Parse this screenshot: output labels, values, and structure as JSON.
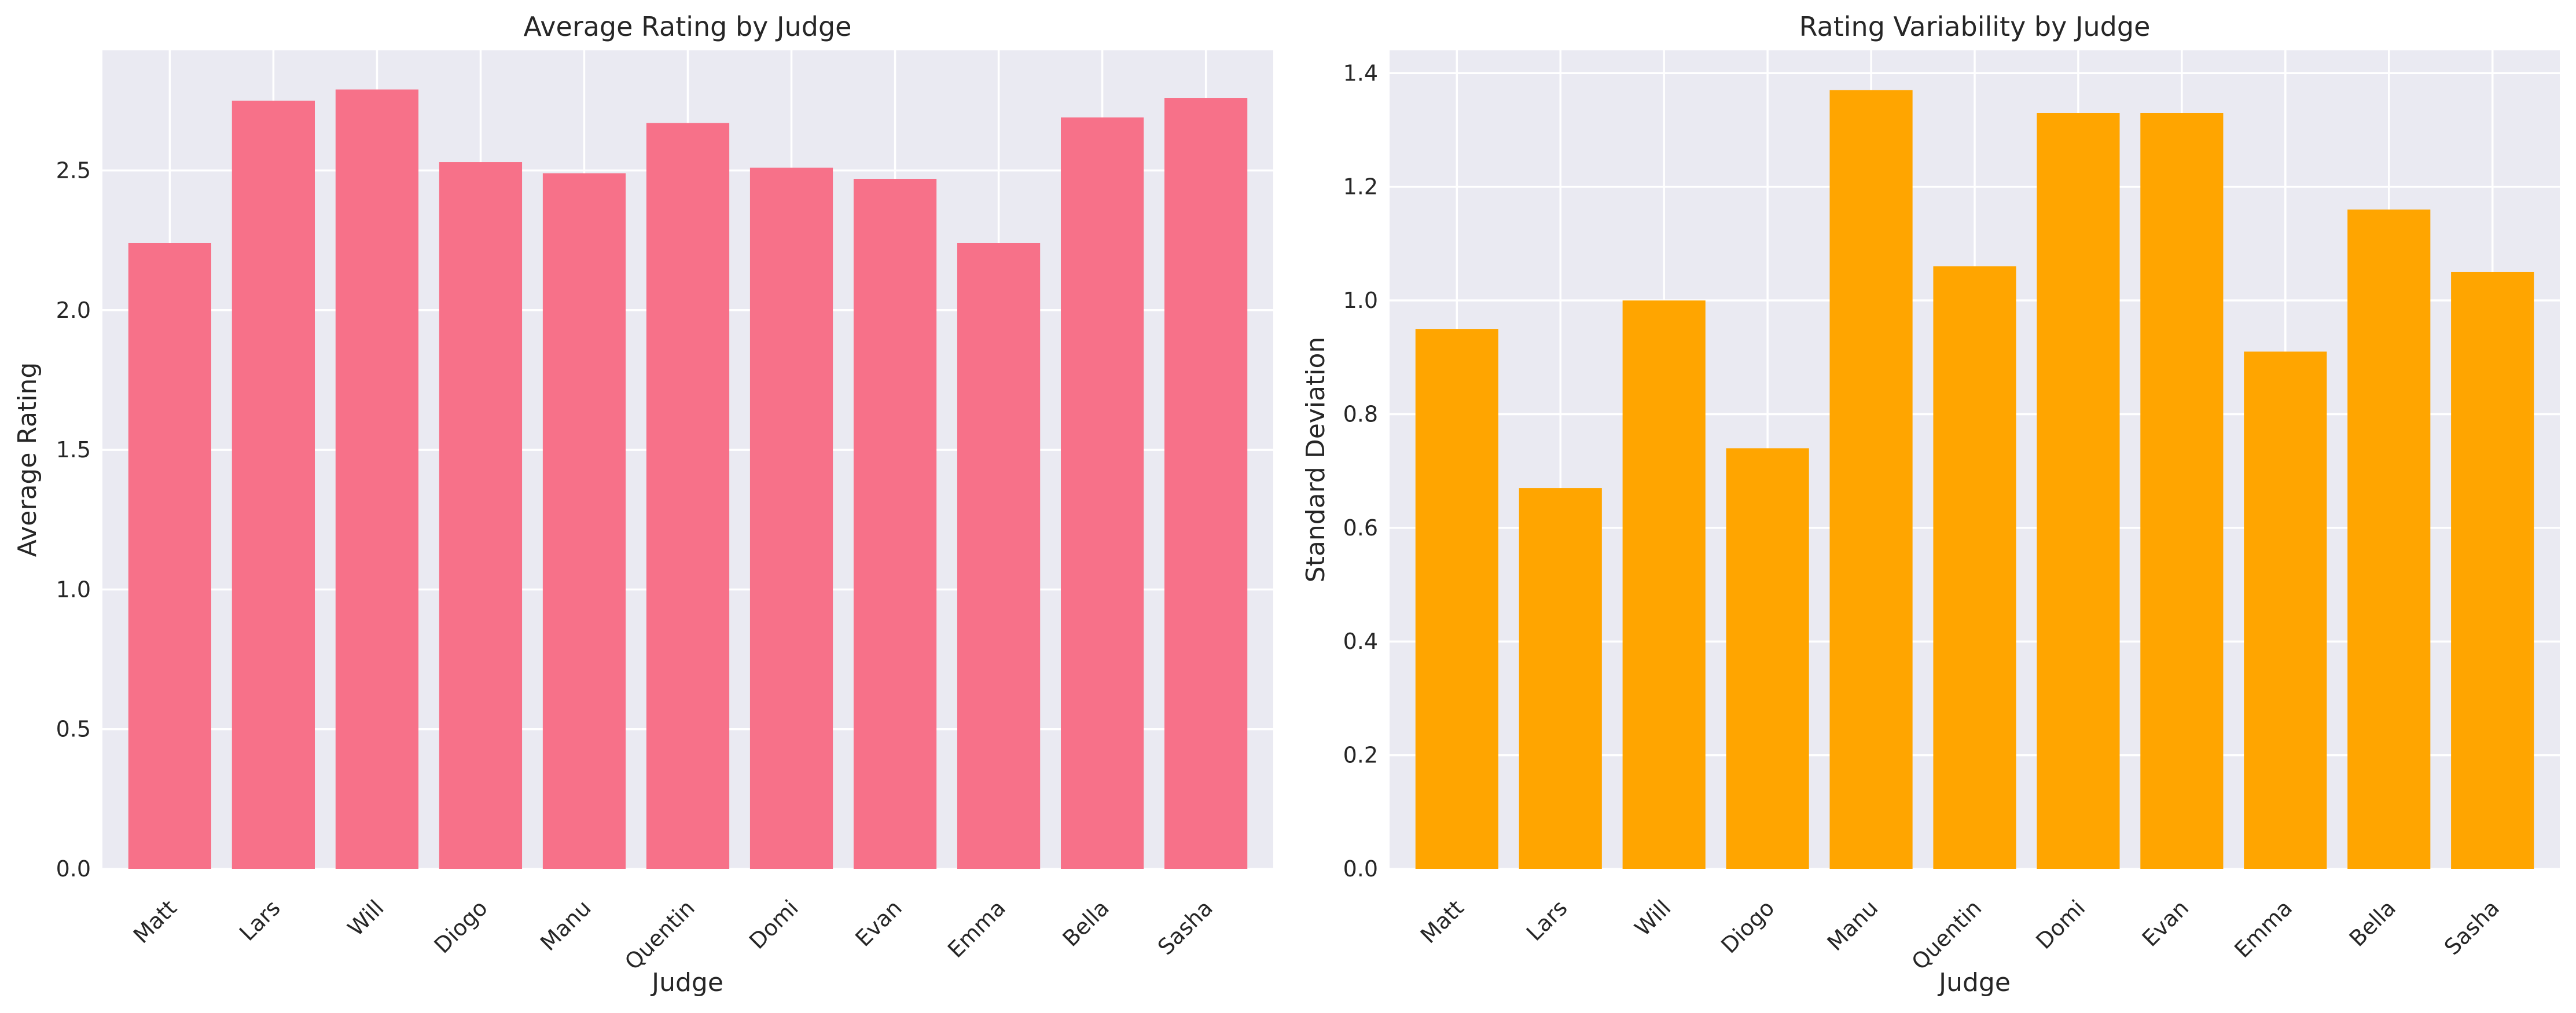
{
  "chart_data": [
    {
      "type": "bar",
      "title": "Average Rating by Judge",
      "xlabel": "Judge",
      "ylabel": "Average Rating",
      "categories": [
        "Matt",
        "Lars",
        "Will",
        "Diogo",
        "Manu",
        "Quentin",
        "Domi",
        "Evan",
        "Emma",
        "Bella",
        "Sasha"
      ],
      "values": [
        2.24,
        2.75,
        2.79,
        2.53,
        2.49,
        2.67,
        2.51,
        2.47,
        2.24,
        2.69,
        2.76
      ],
      "ylim": [
        0,
        2.93
      ],
      "yticks": [
        "0.0",
        "0.5",
        "1.0",
        "1.5",
        "2.0",
        "2.5"
      ],
      "color": "#f77189",
      "grid": true
    },
    {
      "type": "bar",
      "title": "Rating Variability by Judge",
      "xlabel": "Judge",
      "ylabel": "Standard Deviation",
      "categories": [
        "Matt",
        "Lars",
        "Will",
        "Diogo",
        "Manu",
        "Quentin",
        "Domi",
        "Evan",
        "Emma",
        "Bella",
        "Sasha"
      ],
      "values": [
        0.95,
        0.67,
        1.0,
        0.74,
        1.37,
        1.06,
        1.33,
        1.33,
        0.91,
        1.16,
        1.05
      ],
      "ylim": [
        0,
        1.44
      ],
      "yticks": [
        "0.0",
        "0.2",
        "0.4",
        "0.6",
        "0.8",
        "1.0",
        "1.2",
        "1.4"
      ],
      "color": "#ffa500",
      "grid": true
    }
  ]
}
